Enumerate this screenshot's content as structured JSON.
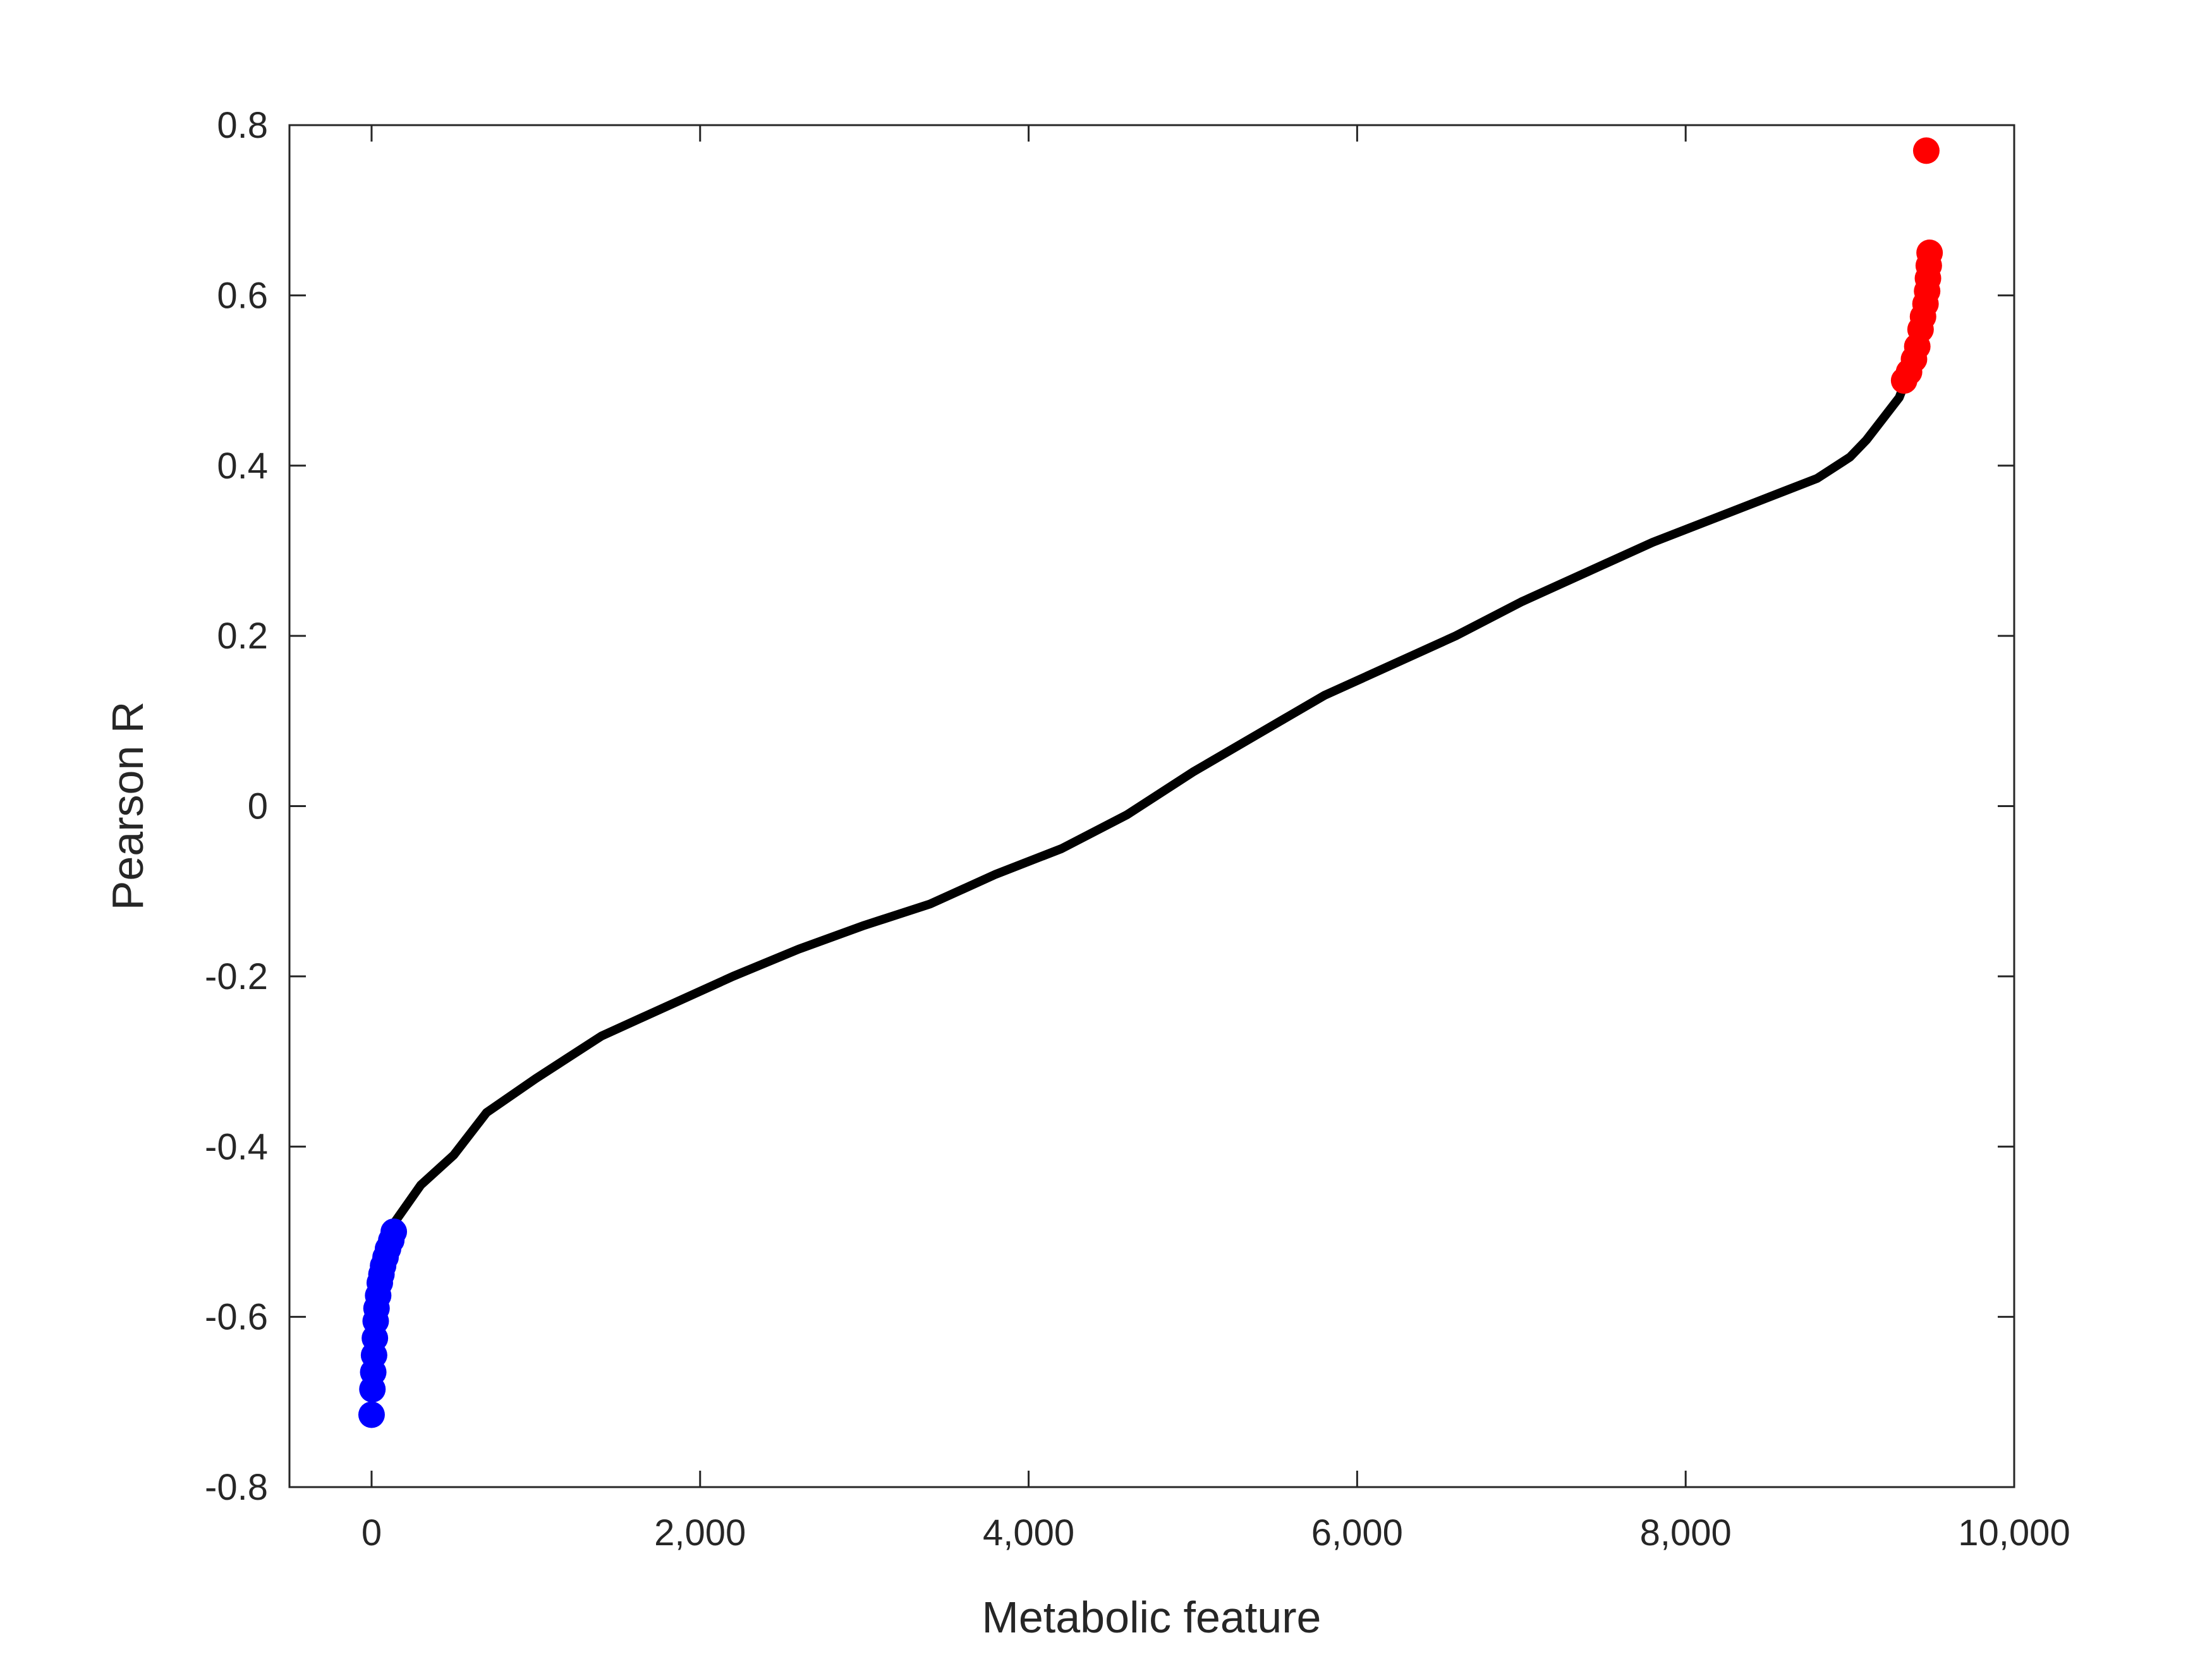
{
  "chart_data": {
    "type": "scatter",
    "title": "",
    "xlabel": "Metabolic feature",
    "ylabel": "Pearson R",
    "xlim": [
      -500,
      10000
    ],
    "ylim": [
      -0.8,
      0.8
    ],
    "xticks": [
      0,
      2000,
      4000,
      6000,
      8000,
      10000
    ],
    "xtick_labels": [
      "0",
      "2,000",
      "4,000",
      "6,000",
      "8,000",
      "10,000"
    ],
    "yticks": [
      -0.8,
      -0.6,
      -0.4,
      -0.2,
      0,
      0.2,
      0.4,
      0.6,
      0.8
    ],
    "ytick_labels": [
      "-0.8",
      "-0.6",
      "-0.4",
      "-0.2",
      "0",
      "0.2",
      "0.4",
      "0.6",
      "0.8"
    ],
    "grid": false,
    "legend": "none",
    "series": [
      {
        "color": "#000000",
        "style": "line",
        "x": [
          100,
          300,
          500,
          700,
          1000,
          1400,
          1800,
          2200,
          2600,
          3000,
          3400,
          3800,
          4200,
          4600,
          5000,
          5400,
          5800,
          6200,
          6600,
          7000,
          7400,
          7800,
          8200,
          8600,
          8800,
          9000,
          9100,
          9200,
          9300,
          9330
        ],
        "y": [
          -0.5,
          -0.445,
          -0.41,
          -0.36,
          -0.32,
          -0.27,
          -0.235,
          -0.2,
          -0.168,
          -0.14,
          -0.115,
          -0.08,
          -0.05,
          -0.01,
          0.04,
          0.085,
          0.13,
          0.165,
          0.2,
          0.24,
          0.275,
          0.31,
          0.34,
          0.37,
          0.385,
          0.41,
          0.43,
          0.455,
          0.48,
          0.495
        ]
      },
      {
        "color": "#0000ff",
        "style": "markers",
        "x": [
          0,
          5,
          10,
          15,
          20,
          25,
          30,
          40,
          50,
          60,
          70,
          85,
          100,
          120,
          135
        ],
        "y": [
          -0.715,
          -0.685,
          -0.665,
          -0.645,
          -0.625,
          -0.605,
          -0.59,
          -0.575,
          -0.56,
          -0.55,
          -0.54,
          -0.53,
          -0.52,
          -0.51,
          -0.5
        ]
      },
      {
        "color": "#ff0000",
        "style": "markers",
        "x": [
          9330,
          9360,
          9390,
          9410,
          9430,
          9445,
          9460,
          9470,
          9475,
          9480,
          9485,
          9465
        ],
        "y": [
          0.5,
          0.51,
          0.525,
          0.54,
          0.56,
          0.575,
          0.59,
          0.605,
          0.62,
          0.635,
          0.65,
          0.77
        ]
      }
    ]
  }
}
